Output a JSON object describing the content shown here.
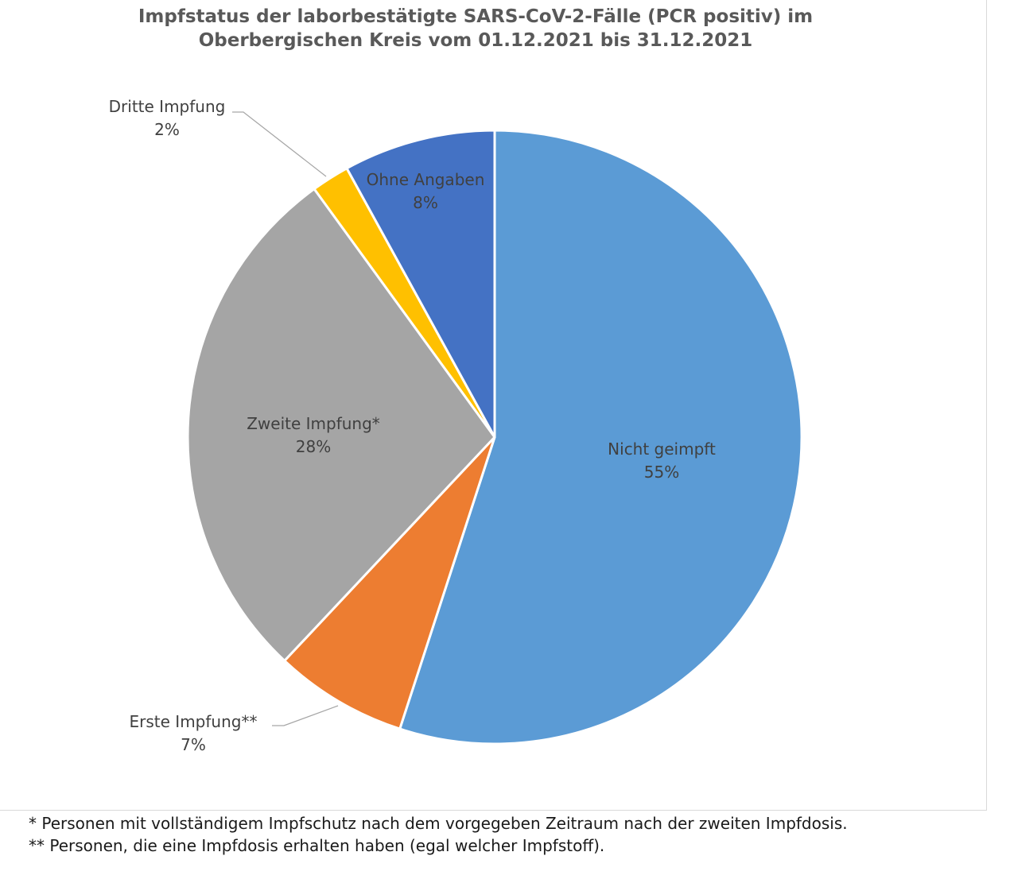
{
  "chart_data": {
    "type": "pie",
    "title_lines": [
      "Impfstatus der laborbestätigte SARS-CoV-2-Fälle (PCR positiv) im",
      "Oberbergischen Kreis vom 01.12.2021 bis 31.12.2021"
    ],
    "slices": [
      {
        "label": "Nicht geimpft",
        "value": 55,
        "display": "55%",
        "color": "#5B9BD5"
      },
      {
        "label": "Erste Impfung**",
        "value": 7,
        "display": "7%",
        "color": "#ED7D31"
      },
      {
        "label": "Zweite Impfung*",
        "value": 28,
        "display": "28%",
        "color": "#A5A5A5"
      },
      {
        "label": "Dritte Impfung",
        "value": 2,
        "display": "2%",
        "color": "#FFC000"
      },
      {
        "label": "Ohne Angaben",
        "value": 8,
        "display": "8%",
        "color": "#4472C4"
      }
    ],
    "start_angle": "12 o'clock",
    "direction": "clockwise"
  },
  "footnotes": {
    "line1": "* Personen mit vollständigem Impfschutz nach dem vorgegeben Zeitraum nach der zweiten Impfdosis.",
    "line2": "** Personen, die eine Impfdosis erhalten haben (egal welcher Impfstoff)."
  }
}
